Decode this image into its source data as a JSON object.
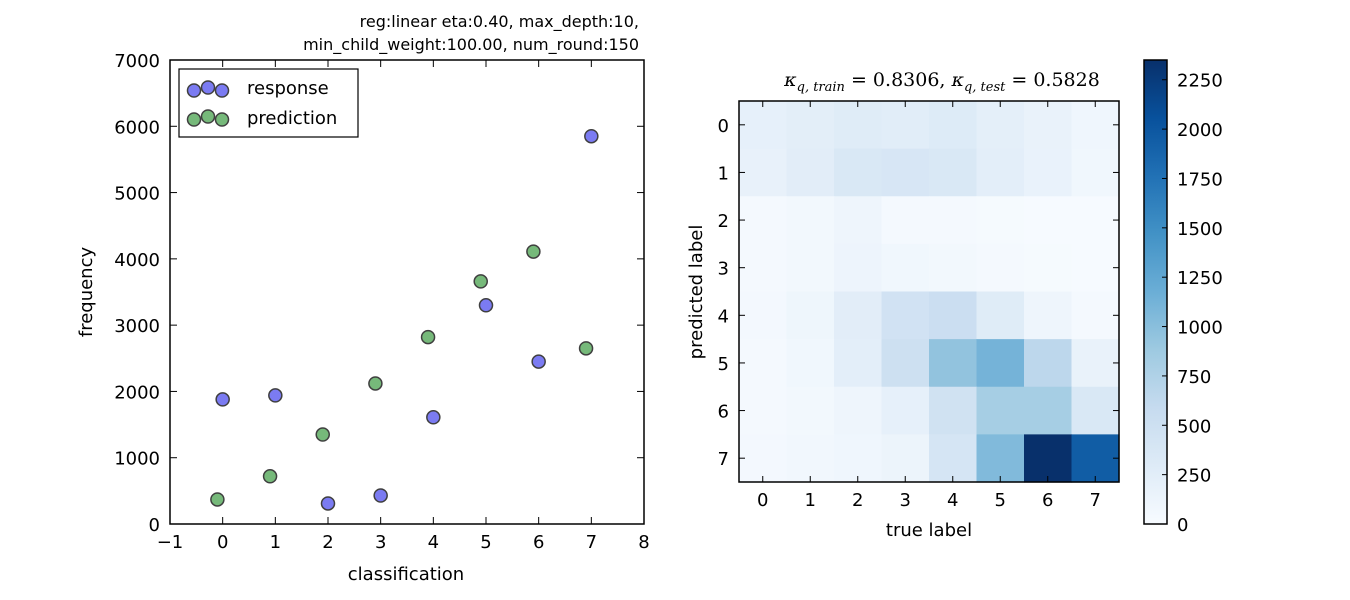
{
  "chart_data": [
    {
      "type": "scatter",
      "title_lines": [
        "reg:linear eta:0.40, max_depth:10,",
        "min_child_weight:100.00, num_round:150"
      ],
      "xlabel": "classification",
      "ylabel": "frequency",
      "xlim": [
        -1,
        8
      ],
      "ylim": [
        0,
        7000
      ],
      "xticks": [
        "−1",
        "0",
        "1",
        "2",
        "3",
        "4",
        "5",
        "6",
        "7",
        "8"
      ],
      "yticks": [
        "0",
        "1000",
        "2000",
        "3000",
        "4000",
        "5000",
        "6000",
        "7000"
      ],
      "legend": {
        "position": "upper-left"
      },
      "series": [
        {
          "name": "response",
          "color": "#7b7bf2",
          "points": [
            [
              0,
              1880
            ],
            [
              1,
              1940
            ],
            [
              2,
              310
            ],
            [
              3,
              430
            ],
            [
              4,
              1610
            ],
            [
              5,
              3300
            ],
            [
              6,
              2450
            ],
            [
              7,
              5850
            ]
          ]
        },
        {
          "name": "prediction",
          "color": "#76b97a",
          "points": [
            [
              -0.1,
              370
            ],
            [
              0.9,
              720
            ],
            [
              1.9,
              1350
            ],
            [
              2.9,
              2120
            ],
            [
              3.9,
              2820
            ],
            [
              4.9,
              3660
            ],
            [
              5.9,
              4110
            ],
            [
              6.9,
              2650
            ]
          ]
        }
      ]
    },
    {
      "type": "heatmap",
      "title": "κ_q,train = 0.8306, κ_q,test = 0.5828",
      "title_parts": {
        "kappa": "κ",
        "sub1": "q, train",
        "val1": " = 0.8306,",
        "sub2": "q, test",
        "val2": " = 0.5828"
      },
      "xlabel": "true label",
      "ylabel": "predicted label",
      "xticks": [
        "0",
        "1",
        "2",
        "3",
        "4",
        "5",
        "6",
        "7"
      ],
      "yticks": [
        "0",
        "1",
        "2",
        "3",
        "4",
        "5",
        "6",
        "7"
      ],
      "colormap": "Blues",
      "vmin": 0,
      "vmax": 2350,
      "colorbar_ticks": [
        "0",
        "250",
        "500",
        "750",
        "1000",
        "1250",
        "1500",
        "1750",
        "2000",
        "2250"
      ],
      "matrix": [
        [
          200,
          240,
          280,
          260,
          300,
          220,
          170,
          90
        ],
        [
          180,
          250,
          350,
          380,
          350,
          230,
          160,
          80
        ],
        [
          30,
          60,
          110,
          40,
          30,
          20,
          10,
          10
        ],
        [
          40,
          60,
          120,
          80,
          60,
          40,
          20,
          10
        ],
        [
          50,
          100,
          250,
          450,
          530,
          280,
          110,
          40
        ],
        [
          40,
          80,
          230,
          500,
          950,
          1120,
          650,
          170
        ],
        [
          40,
          60,
          110,
          200,
          460,
          820,
          820,
          350
        ],
        [
          50,
          70,
          90,
          130,
          400,
          1050,
          2350,
          1950
        ]
      ]
    }
  ]
}
